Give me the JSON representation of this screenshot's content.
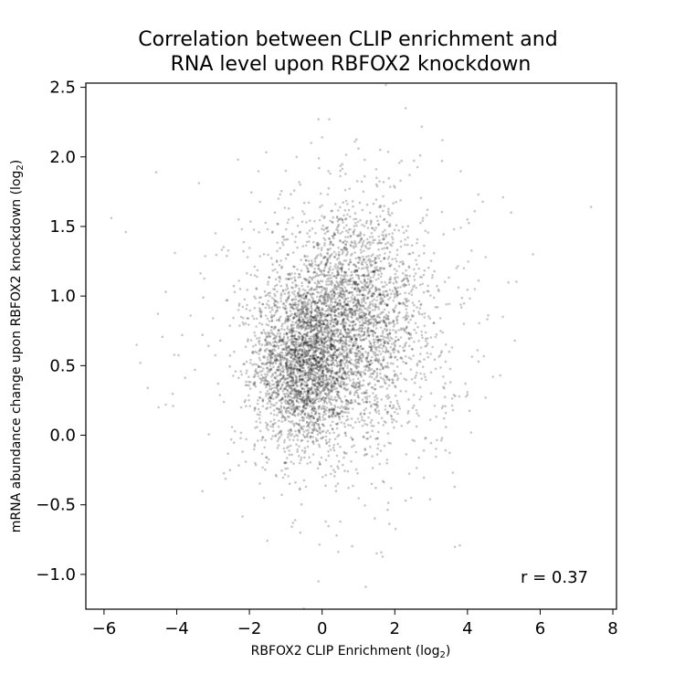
{
  "chart_data": {
    "type": "scatter",
    "title_lines": [
      "Correlation between CLIP enrichment and",
      "RNA level upon RBFOX2 knockdown"
    ],
    "xlabel": {
      "main": "RBFOX2 CLIP Enrichment (log",
      "sub": "2",
      "end": ")"
    },
    "ylabel": {
      "main": "mRNA abundance change upon RBFOX2 knockdown (log",
      "sub": "2",
      "end": ")"
    },
    "xlim": [
      -6.5,
      8.1
    ],
    "ylim": [
      -1.25,
      2.53
    ],
    "xticks": [
      -6,
      -4,
      -2,
      0,
      2,
      4,
      6,
      8
    ],
    "xtick_labels": [
      "−6",
      "−4",
      "−2",
      "0",
      "2",
      "4",
      "6",
      "8"
    ],
    "yticks": [
      -1.0,
      -0.5,
      0.0,
      0.5,
      1.0,
      1.5,
      2.0,
      2.5
    ],
    "ytick_labels": [
      "−1.0",
      "−0.5",
      "0.0",
      "0.5",
      "1.0",
      "1.5",
      "2.0",
      "2.5"
    ],
    "annotation": "r = 0.37",
    "correlation_r": 0.37,
    "point_color": "#000000",
    "grid": false,
    "clusters": [
      {
        "cx": -0.5,
        "cy": 0.5,
        "sx": 0.65,
        "sy": 0.3,
        "n": 2200
      },
      {
        "cx": 0.8,
        "cy": 0.85,
        "sx": 1.0,
        "sy": 0.38,
        "n": 2200
      },
      {
        "cx": 0.6,
        "cy": 0.7,
        "sx": 1.6,
        "sy": 0.55,
        "n": 900
      }
    ],
    "points": [
      [
        -5.8,
        1.56
      ],
      [
        -5.4,
        1.46
      ],
      [
        -5.1,
        0.65
      ],
      [
        -5.0,
        0.52
      ],
      [
        -4.8,
        0.34
      ],
      [
        -4.5,
        0.2
      ],
      [
        -4.3,
        0.22
      ],
      [
        -4.1,
        0.21
      ],
      [
        -4.3,
        1.03
      ],
      [
        -4.05,
        1.31
      ],
      [
        -3.5,
        0.47
      ],
      [
        -3.0,
        0.84
      ],
      [
        -2.8,
        0.68
      ],
      [
        -2.7,
        0.24
      ],
      [
        -2.5,
        -0.03
      ],
      [
        -2.1,
        0.36
      ],
      [
        -2.05,
        1.28
      ],
      [
        -2.1,
        -0.19
      ],
      [
        -1.9,
        0.6
      ],
      [
        -1.6,
        -0.45
      ],
      [
        -1.0,
        -0.2
      ],
      [
        -0.8,
        -0.63
      ],
      [
        -0.6,
        -0.7
      ],
      [
        0.1,
        -0.62
      ],
      [
        0.5,
        -0.62
      ],
      [
        0.4,
        -0.72
      ],
      [
        1.5,
        -0.85
      ],
      [
        1.2,
        -1.09
      ],
      [
        -0.1,
        -1.05
      ],
      [
        2.3,
        -0.47
      ],
      [
        1.9,
        -0.38
      ],
      [
        2.8,
        -0.11
      ],
      [
        3.3,
        -0.02
      ],
      [
        3.6,
        0.18
      ],
      [
        4.0,
        0.29
      ],
      [
        4.1,
        0.02
      ],
      [
        4.3,
        0.53
      ],
      [
        4.5,
        0.27
      ],
      [
        4.7,
        0.42
      ],
      [
        4.9,
        0.43
      ],
      [
        4.2,
        1.05
      ],
      [
        4.5,
        1.28
      ],
      [
        4.0,
        1.55
      ],
      [
        4.2,
        1.61
      ],
      [
        4.3,
        1.73
      ],
      [
        5.3,
        0.68
      ],
      [
        5.2,
        1.6
      ],
      [
        5.8,
        1.3
      ],
      [
        7.4,
        1.64
      ],
      [
        3.9,
        1.2
      ],
      [
        3.3,
        1.97
      ],
      [
        2.7,
        2.01
      ],
      [
        2.3,
        2.35
      ],
      [
        0.0,
        2.14
      ],
      [
        -0.3,
        2.1
      ],
      [
        -0.1,
        2.27
      ],
      [
        0.2,
        2.27
      ],
      [
        0.9,
        2.11
      ],
      [
        1.0,
        2.06
      ],
      [
        -1.0,
        1.9
      ],
      [
        -1.3,
        1.6
      ],
      [
        -1.5,
        1.48
      ],
      [
        -0.6,
        1.8
      ],
      [
        3.9,
        0.8
      ],
      [
        3.5,
        0.6
      ],
      [
        3.0,
        0.3
      ],
      [
        -1.8,
        1.05
      ],
      [
        -2.3,
        0.9
      ],
      [
        -1.6,
        1.3
      ],
      [
        2.0,
        1.78
      ],
      [
        2.9,
        1.62
      ],
      [
        -0.7,
        2.0
      ],
      [
        1.6,
        2.05
      ],
      [
        -1.2,
        1.7
      ],
      [
        0.5,
        1.9
      ]
    ]
  }
}
